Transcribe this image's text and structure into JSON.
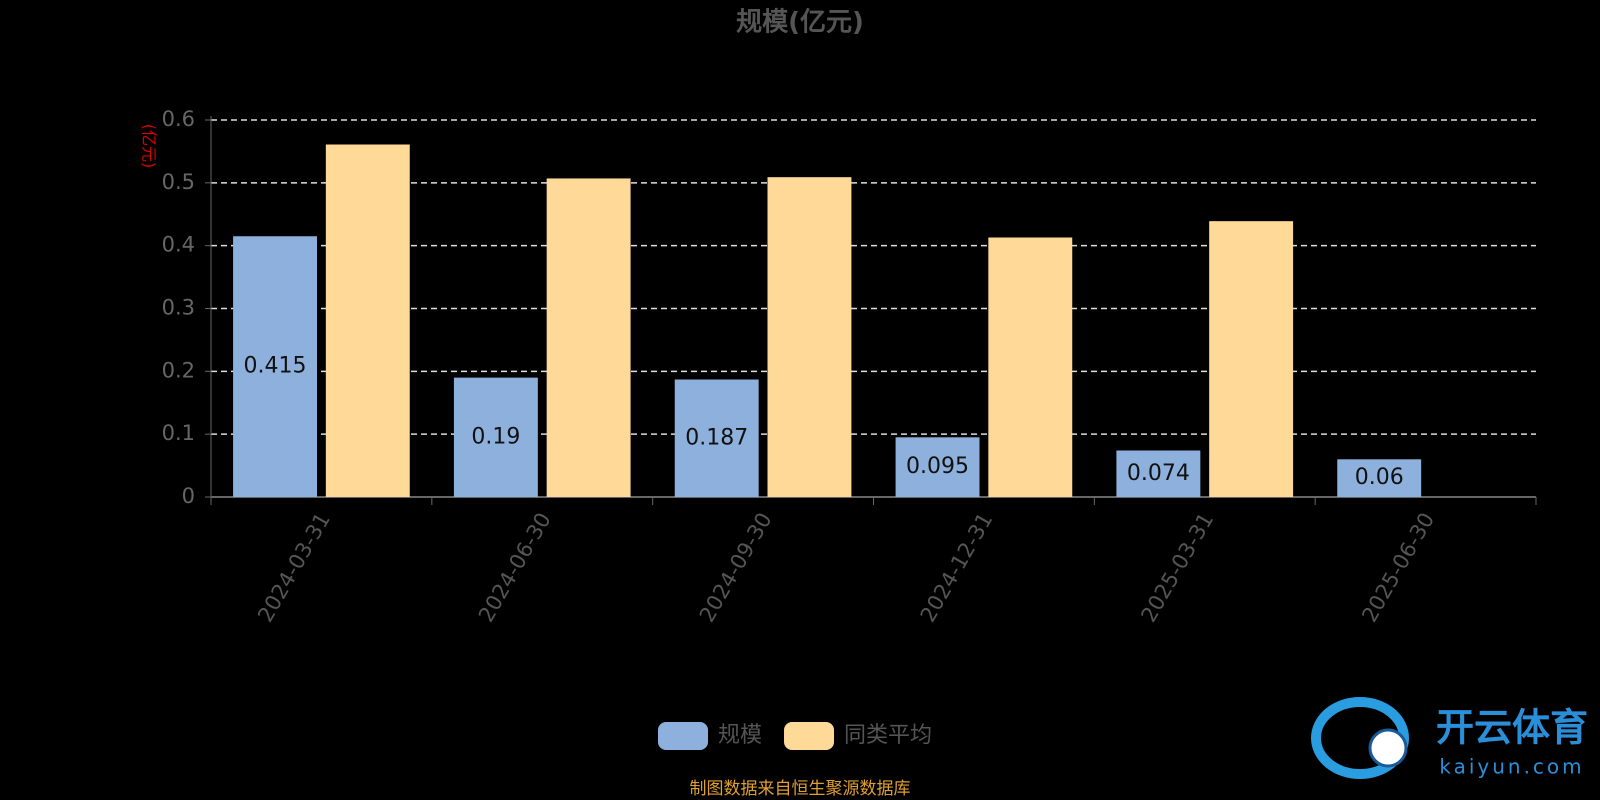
{
  "chart_data": {
    "type": "bar",
    "title": "规模(亿元)",
    "y_label": "(亿元)",
    "categories": [
      "2024-03-31",
      "2024-06-30",
      "2024-09-30",
      "2024-12-31",
      "2025-03-31",
      "2025-06-30"
    ],
    "series": [
      {
        "name": "规模",
        "color": "#8eb0dc",
        "values": [
          0.415,
          0.19,
          0.187,
          0.095,
          0.074,
          0.06
        ],
        "labels": true
      },
      {
        "name": "同类平均",
        "color": "#ffd998",
        "values": [
          0.561,
          0.507,
          0.509,
          0.413,
          0.439,
          null
        ],
        "labels": false
      }
    ],
    "ylim": [
      0,
      0.6
    ],
    "yticks": [
      0,
      0.1,
      0.2,
      0.3,
      0.4,
      0.5,
      0.6
    ],
    "grid": true,
    "footer": "制图数据来自恒生聚源数据库",
    "watermark": {
      "name": "开云体育",
      "url": "kaiyun.com"
    }
  }
}
